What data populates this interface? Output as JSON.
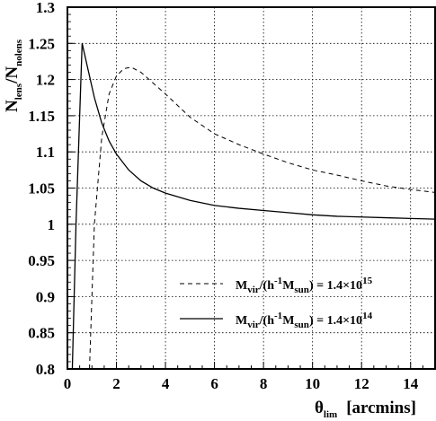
{
  "chart_data": {
    "type": "line",
    "title": "",
    "xlabel": "θ",
    "xlabel_sub": "lim",
    "xlabel_unit": "[arcmins]",
    "ylabel_parts": [
      "N",
      "lens",
      "/N",
      "nolens"
    ],
    "xlim": [
      0,
      15
    ],
    "ylim": [
      0.8,
      1.3
    ],
    "xticks": [
      0,
      2,
      4,
      6,
      8,
      10,
      12,
      14
    ],
    "yticks": [
      0.8,
      0.85,
      0.9,
      0.95,
      1,
      1.05,
      1.1,
      1.15,
      1.2,
      1.25,
      1.3
    ],
    "xtick_labels": [
      "0",
      "2",
      "4",
      "6",
      "8",
      "10",
      "12",
      "14"
    ],
    "ytick_labels": [
      "0.8",
      "0.85",
      "0.9",
      "0.95",
      "1",
      "1.05",
      "1.1",
      "1.15",
      "1.2",
      "1.25",
      "1.3"
    ],
    "grid": true,
    "legend_position": "bottom-right",
    "series": [
      {
        "name": "M_vir/(h^-1 M_sun) = 1.4×10^15",
        "legend_parts": [
          "M",
          "vir",
          "/(h",
          "-1",
          "M",
          "sun",
          ") = 1.4×10",
          "15"
        ],
        "style": "dashed",
        "x": [
          0.9,
          1.1,
          1.4,
          1.7,
          2.0,
          2.3,
          2.6,
          3.0,
          3.5,
          4.0,
          5.0,
          6.0,
          7.0,
          8.0,
          9.0,
          10.0,
          11.0,
          12.0,
          13.0,
          14.0,
          15.0
        ],
        "y": [
          0.8,
          1.0,
          1.12,
          1.18,
          1.205,
          1.215,
          1.217,
          1.21,
          1.195,
          1.18,
          1.148,
          1.125,
          1.11,
          1.097,
          1.085,
          1.075,
          1.068,
          1.06,
          1.053,
          1.048,
          1.044
        ]
      },
      {
        "name": "M_vir/(h^-1 M_sun) = 1.4×10^14",
        "legend_parts": [
          "M",
          "vir",
          "/(h",
          "-1",
          "M",
          "sun",
          ") = 1.4×10",
          "14"
        ],
        "style": "solid",
        "x": [
          0.2,
          0.35,
          0.6,
          0.8,
          1.1,
          1.4,
          1.7,
          2.0,
          2.5,
          3.0,
          3.5,
          4.0,
          5.0,
          6.0,
          7.0,
          8.0,
          9.0,
          10.0,
          11.0,
          12.0,
          13.0,
          14.0,
          15.0
        ],
        "y": [
          0.8,
          1.0,
          1.25,
          1.22,
          1.175,
          1.14,
          1.115,
          1.097,
          1.075,
          1.06,
          1.05,
          1.043,
          1.033,
          1.026,
          1.022,
          1.019,
          1.016,
          1.013,
          1.011,
          1.01,
          1.009,
          1.008,
          1.007
        ]
      }
    ]
  }
}
